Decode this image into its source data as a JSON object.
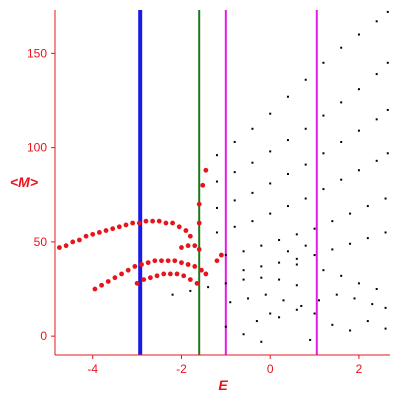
{
  "chart_data": {
    "type": "scatter",
    "title": "",
    "xlabel": "E",
    "ylabel": "<M>",
    "xlim": [
      -4.85,
      2.7
    ],
    "ylim": [
      -10,
      173
    ],
    "x_ticks": [
      -4,
      -2,
      0,
      2
    ],
    "x_tick_labels": [
      "-4",
      "-2",
      "0",
      "2"
    ],
    "y_ticks": [
      0,
      50,
      100,
      150
    ],
    "y_tick_labels": [
      "0",
      "50",
      "100",
      "150"
    ],
    "grid": false,
    "axis_color": "#e8141c",
    "vertical_lines": [
      {
        "x": -2.93,
        "color": "#1a1ae6",
        "width": "thick"
      },
      {
        "x": -1.6,
        "color": "#1a7a1a",
        "width": "medium"
      },
      {
        "x": -1.0,
        "color": "#e61ae6",
        "width": "medium"
      },
      {
        "x": 1.05,
        "color": "#e61ae6",
        "width": "medium"
      }
    ],
    "series": [
      {
        "marker": "red-dot",
        "color": "#e8141c",
        "points": [
          [
            -4.75,
            47
          ],
          [
            -4.6,
            48
          ],
          [
            -4.45,
            50
          ],
          [
            -4.3,
            51
          ],
          [
            -4.15,
            53
          ],
          [
            -4.0,
            54
          ],
          [
            -3.85,
            55
          ],
          [
            -3.7,
            56
          ],
          [
            -3.55,
            57
          ],
          [
            -3.4,
            58
          ],
          [
            -3.25,
            59
          ],
          [
            -3.1,
            60
          ],
          [
            -2.95,
            60
          ],
          [
            -2.8,
            61
          ],
          [
            -2.65,
            61
          ],
          [
            -2.5,
            61
          ],
          [
            -2.35,
            60
          ],
          [
            -2.2,
            60
          ],
          [
            -2.05,
            58
          ],
          [
            -1.9,
            56
          ],
          [
            -1.8,
            53
          ],
          [
            -3.95,
            25
          ],
          [
            -3.8,
            27
          ],
          [
            -3.65,
            29
          ],
          [
            -3.5,
            31
          ],
          [
            -3.35,
            33
          ],
          [
            -3.2,
            35
          ],
          [
            -3.05,
            37
          ],
          [
            -2.9,
            38
          ],
          [
            -2.75,
            39
          ],
          [
            -2.6,
            40
          ],
          [
            -2.45,
            40
          ],
          [
            -2.3,
            40
          ],
          [
            -2.15,
            40
          ],
          [
            -2.0,
            39
          ],
          [
            -1.85,
            38
          ],
          [
            -1.7,
            37
          ],
          [
            -1.55,
            35
          ],
          [
            -1.45,
            33
          ],
          [
            -3.0,
            28
          ],
          [
            -2.85,
            30
          ],
          [
            -2.7,
            31
          ],
          [
            -2.55,
            32
          ],
          [
            -2.4,
            33
          ],
          [
            -2.25,
            33
          ],
          [
            -2.1,
            33
          ],
          [
            -1.95,
            32
          ],
          [
            -1.8,
            30
          ],
          [
            -1.65,
            28
          ],
          [
            -2.0,
            47
          ],
          [
            -1.85,
            48
          ],
          [
            -1.7,
            48
          ],
          [
            -1.6,
            46
          ],
          [
            -1.6,
            60
          ],
          [
            -1.6,
            70
          ],
          [
            -1.52,
            80
          ],
          [
            -1.45,
            88
          ],
          [
            -1.2,
            40
          ],
          [
            -1.1,
            43
          ]
        ]
      },
      {
        "marker": "black-dot",
        "color": "#000000",
        "points": [
          [
            -1.2,
            96
          ],
          [
            -0.8,
            103
          ],
          [
            -0.4,
            110
          ],
          [
            0.0,
            118
          ],
          [
            0.4,
            127
          ],
          [
            0.8,
            136
          ],
          [
            1.2,
            145
          ],
          [
            1.6,
            153
          ],
          [
            2.0,
            160
          ],
          [
            2.4,
            167
          ],
          [
            2.65,
            172
          ],
          [
            -1.2,
            82
          ],
          [
            -0.8,
            87
          ],
          [
            -0.4,
            92
          ],
          [
            0.0,
            98
          ],
          [
            0.4,
            104
          ],
          [
            0.8,
            110
          ],
          [
            1.2,
            117
          ],
          [
            1.6,
            124
          ],
          [
            2.0,
            131
          ],
          [
            2.4,
            139
          ],
          [
            2.65,
            145
          ],
          [
            -1.2,
            68
          ],
          [
            -0.8,
            72
          ],
          [
            -0.4,
            76
          ],
          [
            0.0,
            81
          ],
          [
            0.4,
            86
          ],
          [
            0.8,
            91
          ],
          [
            1.2,
            97
          ],
          [
            1.6,
            103
          ],
          [
            2.0,
            109
          ],
          [
            2.4,
            115
          ],
          [
            2.65,
            120
          ],
          [
            -1.2,
            55
          ],
          [
            -0.8,
            58
          ],
          [
            -0.4,
            61
          ],
          [
            0.0,
            65
          ],
          [
            0.4,
            69
          ],
          [
            0.8,
            73
          ],
          [
            1.2,
            78
          ],
          [
            1.6,
            83
          ],
          [
            2.0,
            88
          ],
          [
            2.4,
            93
          ],
          [
            2.65,
            97
          ],
          [
            -1.0,
            43
          ],
          [
            -0.6,
            45
          ],
          [
            -0.2,
            48
          ],
          [
            0.2,
            51
          ],
          [
            0.6,
            54
          ],
          [
            1.0,
            57
          ],
          [
            1.4,
            61
          ],
          [
            1.8,
            65
          ],
          [
            2.2,
            69
          ],
          [
            2.6,
            73
          ],
          [
            -0.6,
            35
          ],
          [
            -0.2,
            37
          ],
          [
            0.2,
            39
          ],
          [
            0.6,
            41
          ],
          [
            1.0,
            43
          ],
          [
            1.4,
            46
          ],
          [
            1.8,
            49
          ],
          [
            2.2,
            52
          ],
          [
            2.6,
            55
          ],
          [
            -2.2,
            22
          ],
          [
            -1.8,
            24
          ],
          [
            -1.4,
            26
          ],
          [
            -1.0,
            28
          ],
          [
            -0.6,
            30
          ],
          [
            -0.2,
            31
          ],
          [
            0.2,
            30
          ],
          [
            0.6,
            27
          ],
          [
            -0.9,
            18
          ],
          [
            -0.5,
            20
          ],
          [
            -0.1,
            22
          ],
          [
            0.3,
            19
          ],
          [
            0.7,
            16
          ],
          [
            1.1,
            19
          ],
          [
            1.5,
            22
          ],
          [
            1.9,
            20
          ],
          [
            2.3,
            17
          ],
          [
            2.6,
            15
          ],
          [
            -1.0,
            5
          ],
          [
            -0.6,
            1
          ],
          [
            -0.2,
            -3
          ],
          [
            0.2,
            10
          ],
          [
            0.6,
            14
          ],
          [
            1.0,
            12
          ],
          [
            1.4,
            6
          ],
          [
            1.8,
            3
          ],
          [
            2.2,
            8
          ],
          [
            2.6,
            4
          ],
          [
            0.4,
            45
          ],
          [
            0.8,
            48
          ],
          [
            0.6,
            38
          ],
          [
            1.2,
            35
          ],
          [
            1.6,
            32
          ],
          [
            2.0,
            28
          ],
          [
            2.4,
            25
          ],
          [
            0.0,
            12
          ],
          [
            0.9,
            -2
          ],
          [
            -0.3,
            8
          ]
        ]
      }
    ]
  }
}
